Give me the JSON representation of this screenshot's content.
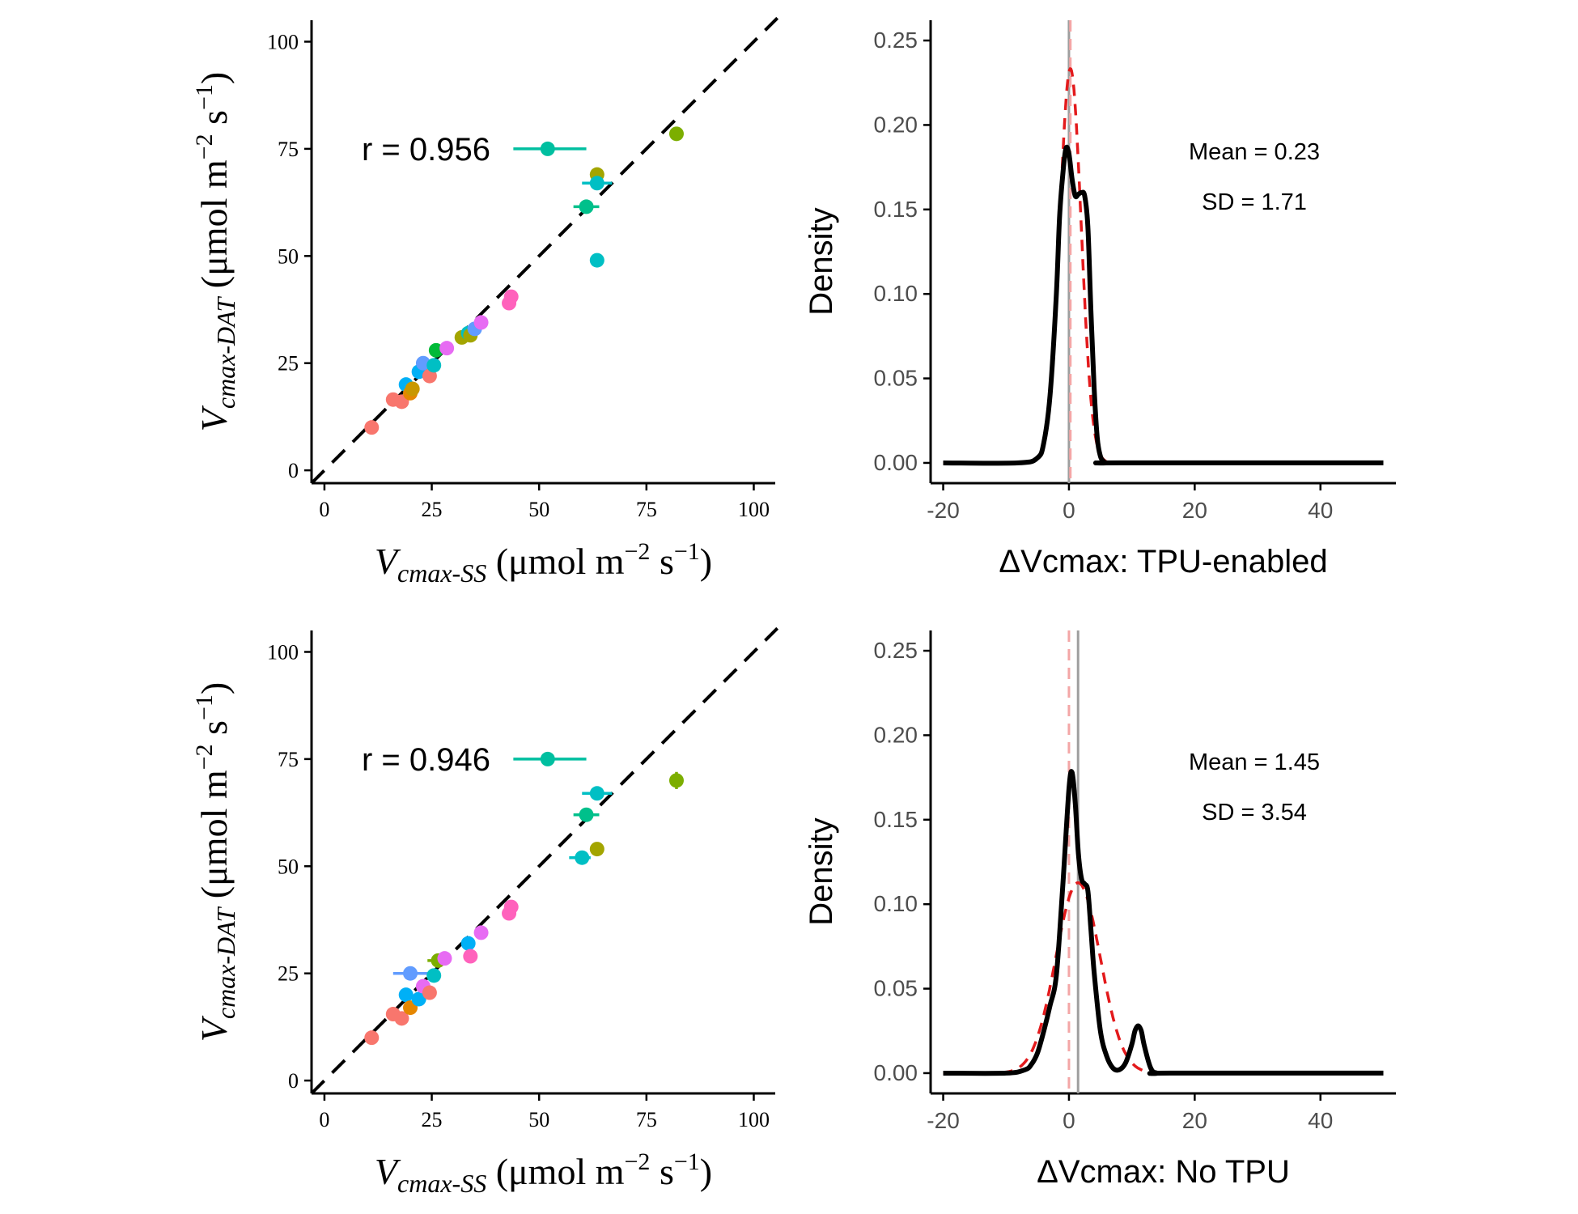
{
  "chart_data": [
    {
      "type": "scatter",
      "panel": "top-left",
      "xlabel": {
        "italic": "V",
        "sub": "cmax-SS",
        "unit": "(μmol m",
        "exp1": "−2",
        "mid": " s",
        "exp2": "−1",
        "close": ")"
      },
      "ylabel": {
        "italic": "V",
        "sub": "cmax-DAT",
        "unit": "(μmol m",
        "exp1": "−2",
        "mid": " s",
        "exp2": "−1",
        "close": ")"
      },
      "xlim": [
        -3,
        105
      ],
      "ylim": [
        -3,
        105
      ],
      "xticks": [
        0,
        25,
        50,
        75,
        100
      ],
      "yticks": [
        0,
        25,
        50,
        75,
        100
      ],
      "xtick_labels": [
        "0",
        "25",
        "50",
        "75",
        "100"
      ],
      "ytick_labels": [
        "0",
        "25",
        "50",
        "75",
        "100"
      ],
      "annotation": "r = 0.956",
      "reference_line": "1:1 dashed",
      "points": [
        {
          "x": 11,
          "y": 10,
          "c": "#F8766D"
        },
        {
          "x": 16,
          "y": 16.5,
          "c": "#F8766D"
        },
        {
          "x": 18,
          "y": 16,
          "c": "#F8766D"
        },
        {
          "x": 19,
          "y": 20,
          "c": "#00B0F6"
        },
        {
          "x": 20,
          "y": 18,
          "c": "#E58700"
        },
        {
          "x": 20.5,
          "y": 19,
          "c": "#C99800"
        },
        {
          "x": 22,
          "y": 23,
          "c": "#00B0F6"
        },
        {
          "x": 23,
          "y": 25,
          "c": "#619CFF"
        },
        {
          "x": 24.5,
          "y": 22,
          "c": "#F8766D"
        },
        {
          "x": 25.5,
          "y": 24.5,
          "c": "#00BFC4"
        },
        {
          "x": 26,
          "y": 28,
          "c": "#00BA38"
        },
        {
          "x": 28.5,
          "y": 28.5,
          "c": "#E76BF3"
        },
        {
          "x": 32,
          "y": 31,
          "c": "#A3A500"
        },
        {
          "x": 33.5,
          "y": 32,
          "c": "#00BFC4"
        },
        {
          "x": 34,
          "y": 31.5,
          "c": "#A3A500"
        },
        {
          "x": 35,
          "y": 33,
          "c": "#619CFF"
        },
        {
          "x": 36.5,
          "y": 34.5,
          "c": "#E76BF3"
        },
        {
          "x": 43,
          "y": 39,
          "c": "#FF62BC"
        },
        {
          "x": 43.5,
          "y": 40.5,
          "c": "#FF62BC"
        },
        {
          "x": 52,
          "y": 75,
          "c": "#00BFA0",
          "xerr": [
            44,
            61
          ]
        },
        {
          "x": 61,
          "y": 61.5,
          "c": "#00C08B",
          "xerr": [
            58,
            64
          ]
        },
        {
          "x": 63.5,
          "y": 49,
          "c": "#00BFC4"
        },
        {
          "x": 63.5,
          "y": 69,
          "c": "#A3A500"
        },
        {
          "x": 63.5,
          "y": 67,
          "c": "#00BFC4",
          "xerr": [
            60,
            67
          ]
        },
        {
          "x": 82,
          "y": 78.5,
          "c": "#7CAE00"
        }
      ]
    },
    {
      "type": "line",
      "panel": "top-right",
      "xlabel": "ΔVcmax: TPU-enabled",
      "ylabel": "Density",
      "xlim": [
        -22,
        52
      ],
      "ylim": [
        -0.012,
        0.262
      ],
      "xticks": [
        -20,
        0,
        20,
        40
      ],
      "yticks": [
        0,
        0.05,
        0.1,
        0.15,
        0.2,
        0.25
      ],
      "xtick_labels": [
        "-20",
        "0",
        "20",
        "40"
      ],
      "ytick_labels": [
        "0.00",
        "0.05",
        "0.10",
        "0.15",
        "0.20",
        "0.25"
      ],
      "mean_label": "Mean = 0.23",
      "sd_label": "SD = 1.71",
      "mean": 0.23,
      "sd": 1.71,
      "kde_curve": {
        "x": [
          -20,
          -8,
          -5,
          -4,
          -3,
          -2,
          -1.5,
          -1,
          -0.5,
          0,
          0.5,
          1,
          1.5,
          2,
          2.5,
          3,
          3.5,
          4,
          4.5,
          5,
          5.5,
          6,
          8,
          50
        ],
        "y": [
          0,
          0,
          0.003,
          0.012,
          0.04,
          0.1,
          0.145,
          0.17,
          0.186,
          0.183,
          0.168,
          0.158,
          0.159,
          0.16,
          0.158,
          0.14,
          0.09,
          0.045,
          0.015,
          0.004,
          0.001,
          0,
          0,
          0
        ]
      },
      "normal_curve": "red dashed",
      "vlines": [
        {
          "x": 0,
          "color": "#9e9e9e",
          "style": "solid"
        },
        {
          "x": 0.23,
          "color": "#f4a6a6",
          "style": "dashed"
        }
      ]
    },
    {
      "type": "scatter",
      "panel": "bottom-left",
      "xlabel": {
        "italic": "V",
        "sub": "cmax-SS",
        "unit": "(μmol m",
        "exp1": "−2",
        "mid": " s",
        "exp2": "−1",
        "close": ")"
      },
      "ylabel": {
        "italic": "V",
        "sub": "cmax-DAT",
        "unit": "(μmol m",
        "exp1": "−2",
        "mid": " s",
        "exp2": "−1",
        "close": ")"
      },
      "xlim": [
        -3,
        105
      ],
      "ylim": [
        -3,
        105
      ],
      "xticks": [
        0,
        25,
        50,
        75,
        100
      ],
      "yticks": [
        0,
        25,
        50,
        75,
        100
      ],
      "xtick_labels": [
        "0",
        "25",
        "50",
        "75",
        "100"
      ],
      "ytick_labels": [
        "0",
        "25",
        "50",
        "75",
        "100"
      ],
      "annotation": "r = 0.946",
      "reference_line": "1:1 dashed",
      "points": [
        {
          "x": 11,
          "y": 10,
          "c": "#F8766D"
        },
        {
          "x": 16,
          "y": 15.5,
          "c": "#F8766D"
        },
        {
          "x": 18,
          "y": 14.5,
          "c": "#F8766D"
        },
        {
          "x": 20,
          "y": 25,
          "c": "#619CFF",
          "xerr": [
            16,
            24
          ]
        },
        {
          "x": 19,
          "y": 20,
          "c": "#00B0F6"
        },
        {
          "x": 20,
          "y": 17,
          "c": "#E58700"
        },
        {
          "x": 22,
          "y": 19,
          "c": "#00B0F6"
        },
        {
          "x": 23,
          "y": 22,
          "c": "#E76BF3"
        },
        {
          "x": 24.5,
          "y": 20.5,
          "c": "#F8766D"
        },
        {
          "x": 25.5,
          "y": 24.5,
          "c": "#00BFC4"
        },
        {
          "x": 26.5,
          "y": 28,
          "c": "#7CAE00",
          "xerr": [
            24,
            29
          ]
        },
        {
          "x": 28,
          "y": 28.5,
          "c": "#E76BF3"
        },
        {
          "x": 33.5,
          "y": 32,
          "c": "#00B0F6"
        },
        {
          "x": 34,
          "y": 29,
          "c": "#FF62BC"
        },
        {
          "x": 36.5,
          "y": 34.5,
          "c": "#E76BF3"
        },
        {
          "x": 43,
          "y": 39,
          "c": "#FF62BC"
        },
        {
          "x": 43.5,
          "y": 40.5,
          "c": "#FF62BC"
        },
        {
          "x": 52,
          "y": 75,
          "c": "#00BFA0",
          "xerr": [
            44,
            61
          ]
        },
        {
          "x": 60,
          "y": 52,
          "c": "#00BFC4",
          "xerr": [
            57,
            62
          ]
        },
        {
          "x": 61,
          "y": 62,
          "c": "#00C08B",
          "xerr": [
            58,
            64
          ]
        },
        {
          "x": 63.5,
          "y": 54,
          "c": "#A3A500"
        },
        {
          "x": 63.5,
          "y": 67,
          "c": "#00BFC4",
          "xerr": [
            60,
            67
          ]
        },
        {
          "x": 82,
          "y": 70,
          "c": "#7CAE00",
          "yerr": [
            68,
            72
          ]
        }
      ]
    },
    {
      "type": "line",
      "panel": "bottom-right",
      "xlabel": "ΔVcmax: No TPU",
      "ylabel": "Density",
      "xlim": [
        -22,
        52
      ],
      "ylim": [
        -0.012,
        0.262
      ],
      "xticks": [
        -20,
        0,
        20,
        40
      ],
      "yticks": [
        0,
        0.05,
        0.1,
        0.15,
        0.2,
        0.25
      ],
      "xtick_labels": [
        "-20",
        "0",
        "20",
        "40"
      ],
      "ytick_labels": [
        "0.00",
        "0.05",
        "0.10",
        "0.15",
        "0.20",
        "0.25"
      ],
      "mean_label": "Mean = 1.45",
      "sd_label": "SD = 3.54",
      "mean": 1.45,
      "sd": 3.54,
      "kde_curve": {
        "x": [
          -20,
          -10,
          -7,
          -6,
          -5,
          -4,
          -3,
          -2,
          -1,
          0,
          0.5,
          1,
          1.5,
          2,
          2.5,
          3,
          3.5,
          4,
          5,
          6,
          7,
          8,
          9,
          10,
          10.5,
          11,
          11.5,
          12,
          13,
          14,
          16,
          50
        ],
        "y": [
          0,
          0,
          0.002,
          0.005,
          0.012,
          0.025,
          0.04,
          0.058,
          0.11,
          0.168,
          0.178,
          0.16,
          0.13,
          0.115,
          0.112,
          0.108,
          0.085,
          0.06,
          0.025,
          0.01,
          0.003,
          0.002,
          0.006,
          0.017,
          0.025,
          0.028,
          0.025,
          0.016,
          0.003,
          0,
          0,
          0
        ]
      },
      "normal_curve": "red dashed",
      "vlines": [
        {
          "x": 1.45,
          "color": "#9e9e9e",
          "style": "solid"
        },
        {
          "x": 0,
          "color": "#f4a6a6",
          "style": "dashed"
        }
      ]
    }
  ]
}
